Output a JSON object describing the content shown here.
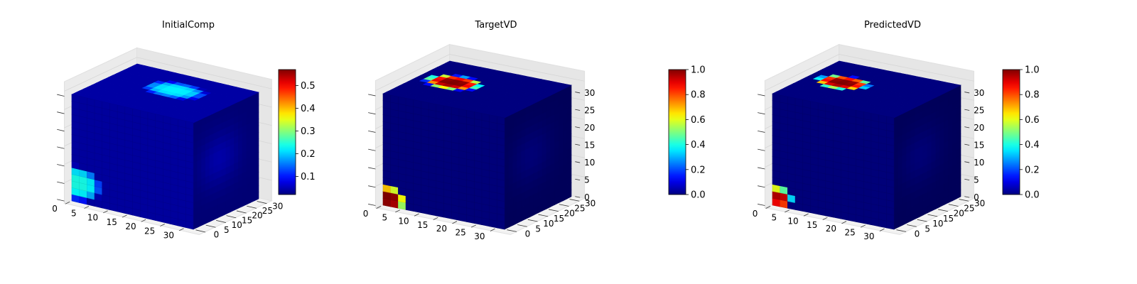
{
  "colormap": [
    "#00007f",
    "#0000ff",
    "#007fff",
    "#00ffff",
    "#7fff7f",
    "#ffff00",
    "#ff7f00",
    "#ff0000",
    "#7f0000"
  ],
  "chart_data": [
    {
      "type": "voxel",
      "title": "InitialComp",
      "grid_size": 32,
      "axis_ticks": {
        "x": [
          0,
          5,
          10,
          15,
          20,
          25,
          30
        ],
        "y": [
          0,
          5,
          10,
          15,
          20,
          25,
          30
        ],
        "z": []
      },
      "colorbar": {
        "min": 0.02,
        "max": 0.57,
        "ticks": [
          0.1,
          0.2,
          0.3,
          0.4,
          0.5
        ]
      },
      "background_value": 0.04,
      "features": [
        {
          "face": "top",
          "u": 0.52,
          "v": 0.62,
          "radius": 0.24,
          "value": 0.22
        },
        {
          "face": "front",
          "u": 0.05,
          "v": 0.18,
          "radius": 0.2,
          "value": 0.24
        }
      ]
    },
    {
      "type": "voxel",
      "title": "TargetVD",
      "grid_size": 32,
      "axis_ticks": {
        "x": [
          0,
          5,
          10,
          15,
          20,
          25,
          30
        ],
        "y": [
          0,
          5,
          10,
          15,
          20,
          25,
          30
        ],
        "z": [
          0,
          5,
          10,
          15,
          20,
          25,
          30
        ]
      },
      "colorbar": {
        "min": 0.0,
        "max": 1.0,
        "ticks": [
          0.0,
          0.2,
          0.4,
          0.6,
          0.8,
          1.0
        ]
      },
      "background_value": 0.0,
      "features": [
        {
          "face": "top",
          "u": 0.28,
          "v": 0.55,
          "radius": 0.22,
          "value": 1.0
        },
        {
          "face": "front",
          "u": 0.05,
          "v": 0.07,
          "radius": 0.14,
          "value": 1.0
        }
      ]
    },
    {
      "type": "voxel",
      "title": "PredictedVD",
      "grid_size": 32,
      "axis_ticks": {
        "x": [
          0,
          5,
          10,
          15,
          20,
          25,
          30
        ],
        "y": [
          0,
          5,
          10,
          15,
          20,
          25,
          30
        ],
        "z": [
          0,
          5,
          10,
          15,
          20,
          25,
          30
        ]
      },
      "colorbar": {
        "min": 0.0,
        "max": 1.0,
        "ticks": [
          0.0,
          0.2,
          0.4,
          0.6,
          0.8,
          1.0
        ]
      },
      "background_value": 0.0,
      "features": [
        {
          "face": "top",
          "u": 0.28,
          "v": 0.55,
          "radius": 0.21,
          "value": 1.0
        },
        {
          "face": "front",
          "u": 0.05,
          "v": 0.08,
          "radius": 0.12,
          "value": 0.95
        }
      ]
    }
  ]
}
